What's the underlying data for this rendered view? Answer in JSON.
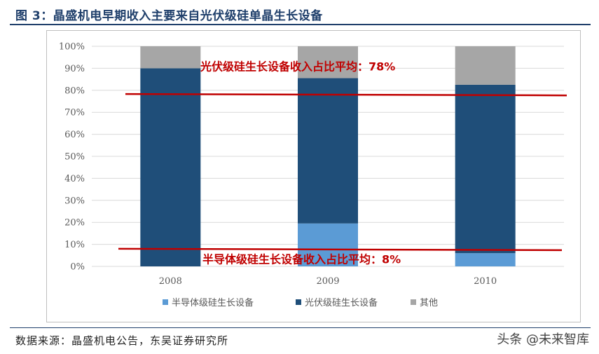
{
  "figure": {
    "title": "图 3：晶盛机电早期收入主要来自光伏级硅单晶生长设备",
    "source": "数据来源：晶盛机电公告，东吴证券研究所",
    "watermark": "头条 @未来智库"
  },
  "chart_data": {
    "type": "bar",
    "stacked": true,
    "categories": [
      "2008",
      "2009",
      "2010"
    ],
    "series": [
      {
        "name": "半导体级硅生长设备",
        "values": [
          0,
          19.5,
          6
        ],
        "color": "#5b9bd5"
      },
      {
        "name": "光伏级硅生长设备",
        "values": [
          90,
          66,
          76.5
        ],
        "color": "#1f4e79"
      },
      {
        "name": "其他",
        "values": [
          10,
          14.5,
          17.5
        ],
        "color": "#a6a6a6"
      }
    ],
    "ylim": [
      0,
      100
    ],
    "yticks": [
      "0%",
      "10%",
      "20%",
      "30%",
      "40%",
      "50%",
      "60%",
      "70%",
      "80%",
      "90%",
      "100%"
    ],
    "grid": true,
    "legend_position": "bottom",
    "annotations": [
      {
        "text": "光伏级硅生长设备收入占比平均：78%",
        "line_value": 78,
        "color": "#c00000"
      },
      {
        "text": "半导体级硅生长设备收入占比平均：8%",
        "line_value": 8,
        "color": "#c00000"
      }
    ]
  }
}
